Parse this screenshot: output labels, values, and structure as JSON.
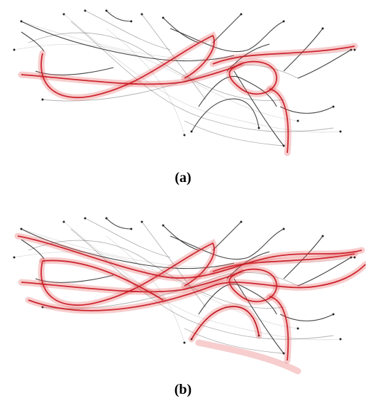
{
  "figures": [
    {
      "caption": "(a)"
    },
    {
      "caption": "(b)"
    }
  ]
}
